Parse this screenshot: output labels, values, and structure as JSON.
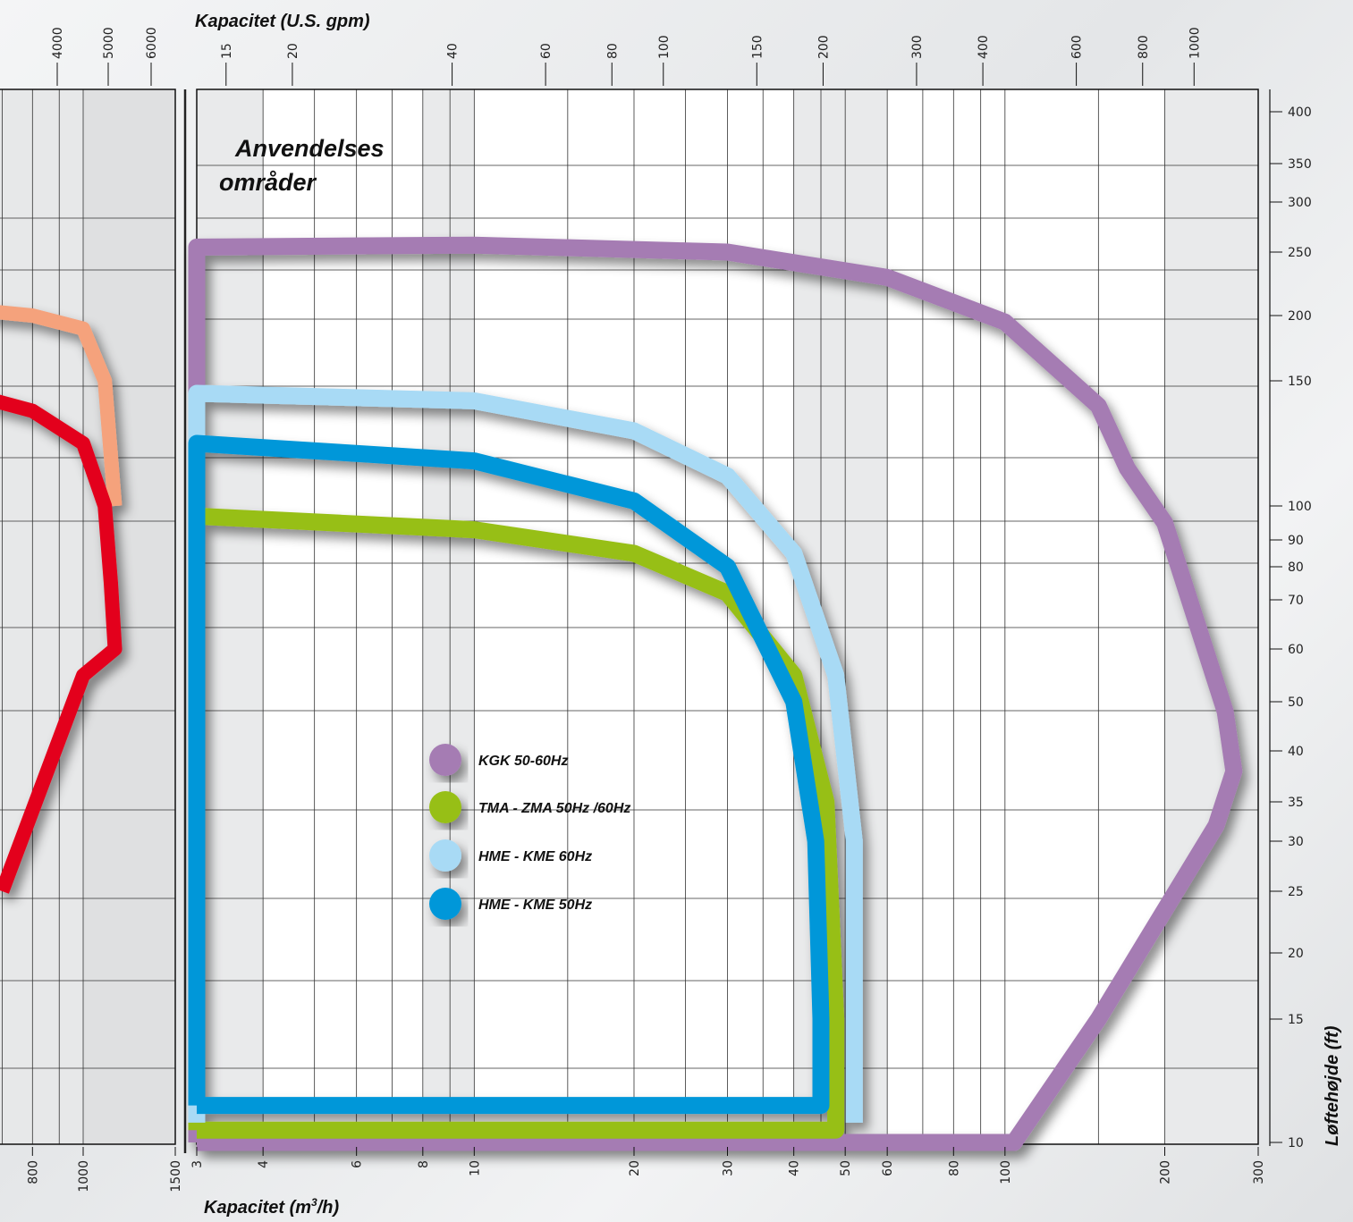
{
  "chart_data": [
    {
      "type": "line",
      "title": "Anvendelses områder",
      "title_lines": [
        "Anvendelses",
        "områder"
      ],
      "xlabel": "Kapacitet (m³/h)",
      "xlabel_main": "Kapacitet (m",
      "xlabel_sup": "3",
      "xlabel_end": "/h)",
      "x2label": "Kapacitet (U.S. gpm)",
      "ylabel": "Løftehøjde (ft)",
      "x_scale": "log",
      "xlim": [
        3,
        300
      ],
      "ylim": [
        10,
        420
      ],
      "x_ticks": [
        3,
        4,
        6,
        8,
        10,
        20,
        30,
        40,
        50,
        60,
        80,
        100,
        200,
        300
      ],
      "x2_ticks": [
        15,
        20,
        40,
        60,
        80,
        100,
        150,
        200,
        300,
        400,
        600,
        800,
        1000
      ],
      "y_ticks": [
        10,
        15,
        20,
        25,
        30,
        35,
        40,
        50,
        60,
        70,
        80,
        90,
        100,
        150,
        200,
        250,
        300,
        350,
        400
      ],
      "grid": true,
      "legend_position": "center",
      "series": [
        {
          "name": "KGK 50-60Hz",
          "color": "#a57bb3",
          "x": [
            3,
            3,
            10,
            30,
            60,
            100,
            150,
            170,
            200,
            260,
            270,
            250,
            150,
            104,
            3
          ],
          "y": [
            10,
            255,
            257,
            250,
            230,
            195,
            140,
            115,
            95,
            48,
            38,
            32,
            15,
            10,
            10
          ]
        },
        {
          "name": "TMA - ZMA 50Hz /60Hz",
          "color": "#97bf13",
          "x": [
            3,
            3,
            10,
            20,
            30,
            40,
            46,
            48,
            48,
            3
          ],
          "y": [
            10.5,
            97,
            93,
            85,
            72,
            55,
            35,
            15,
            10.5,
            10.5
          ]
        },
        {
          "name": "HME - KME 60Hz",
          "color": "#a8daf5",
          "x": [
            3,
            3,
            10,
            20,
            30,
            40,
            48,
            52,
            52
          ],
          "y": [
            10.8,
            145,
            142,
            130,
            112,
            85,
            55,
            30,
            10.8
          ]
        },
        {
          "name": "HME - KME 50Hz",
          "color": "#0097d9",
          "x": [
            3,
            3,
            10,
            20,
            30,
            40,
            44,
            45,
            45,
            3
          ],
          "y": [
            11.5,
            125,
            118,
            102,
            80,
            50,
            30,
            15,
            11.5,
            11.5
          ]
        }
      ]
    },
    {
      "type": "line",
      "partial": true,
      "x_ticks": [
        800,
        1000,
        1500
      ],
      "x2_ticks": [
        4000,
        5000,
        6000
      ],
      "series": [
        {
          "color": "#f5a27c",
          "x": [
            600,
            800,
            1000,
            1100,
            1150
          ],
          "y": [
            205,
            200,
            190,
            150,
            100
          ]
        },
        {
          "color": "#e3001b",
          "x": [
            600,
            800,
            1000,
            1100,
            1130,
            1150,
            1000,
            700
          ],
          "y": [
            145,
            138,
            125,
            100,
            75,
            60,
            55,
            25
          ]
        }
      ]
    }
  ]
}
